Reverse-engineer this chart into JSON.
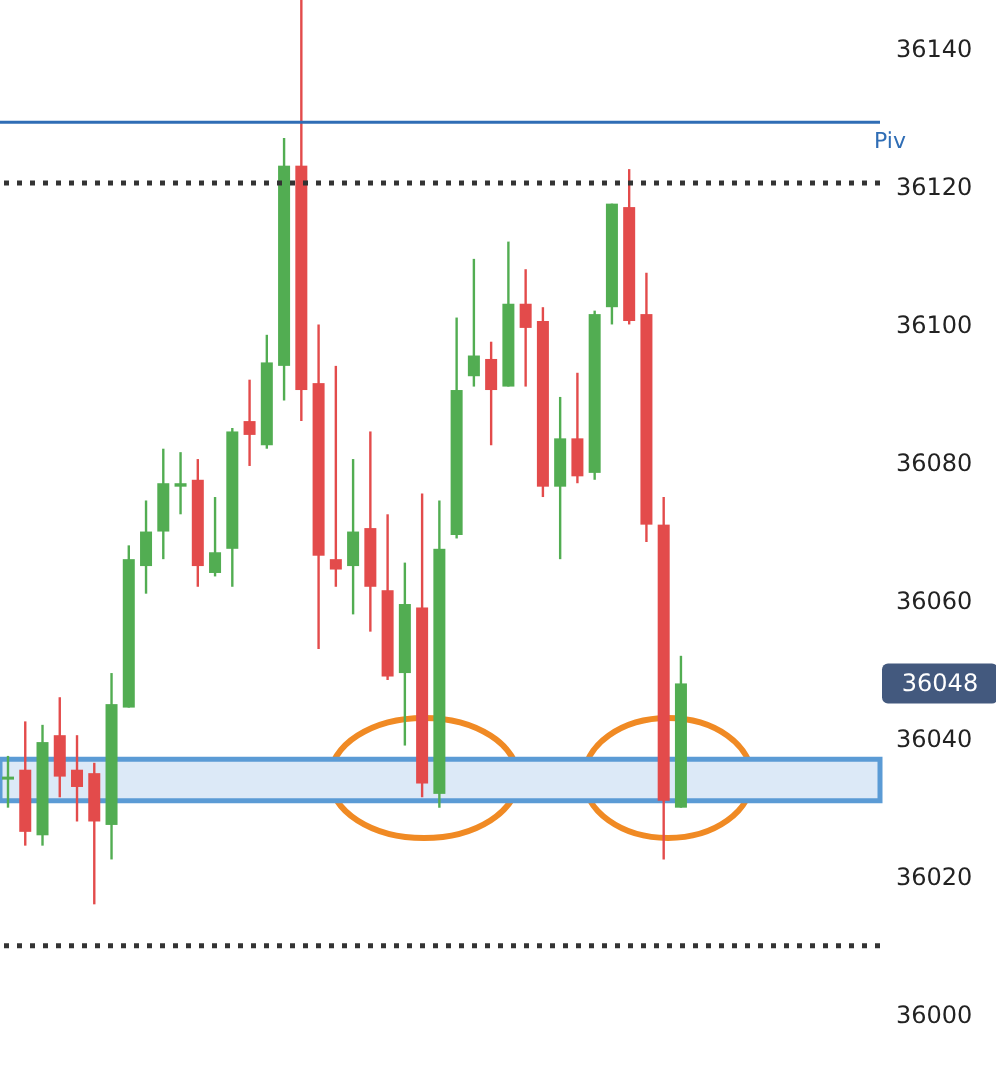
{
  "chart_data": {
    "type": "candlestick",
    "categories": [
      null,
      null,
      null,
      null,
      null,
      null,
      null,
      null,
      null,
      null,
      null,
      null,
      null,
      null,
      null,
      null,
      null,
      null,
      null,
      null,
      null,
      null,
      null,
      null,
      null,
      null,
      null,
      null,
      null,
      null,
      null,
      null,
      null,
      null,
      null,
      null,
      null,
      null,
      null,
      null,
      null,
      null,
      null,
      null,
      null,
      null,
      null,
      null,
      null,
      null,
      null
    ],
    "ohlc": [
      [
        36034.5,
        36037.5,
        36030,
        36034.5
      ],
      [
        36035.5,
        36042.5,
        36024.5,
        36026.5
      ],
      [
        36026,
        36042,
        36024.5,
        36039.5
      ],
      [
        36040.5,
        36046,
        36031.5,
        36034.5
      ],
      [
        36035.5,
        36040.5,
        36028,
        36033
      ],
      [
        36035,
        36036.5,
        36016,
        36028
      ],
      [
        36027.5,
        36049.5,
        36022.5,
        36045
      ],
      [
        36044.5,
        36068,
        36044.5,
        36066
      ],
      [
        36065,
        36074.5,
        36061,
        36070
      ],
      [
        36070,
        36082,
        36066,
        36077
      ],
      [
        36076.5,
        36081.5,
        36072.5,
        36077
      ],
      [
        36077.5,
        36080.5,
        36062,
        36065
      ],
      [
        36064,
        36075,
        36063.5,
        36067
      ],
      [
        36067.5,
        36085,
        36062,
        36084.5
      ],
      [
        36086,
        36092,
        36079.5,
        36084
      ],
      [
        36082.5,
        36098.5,
        36082,
        36094.5
      ],
      [
        36094,
        36127,
        36089,
        36123
      ],
      [
        36123,
        36147,
        36086,
        36090.5
      ],
      [
        36091.5,
        36100,
        36053,
        36066.5
      ],
      [
        36066,
        36094,
        36062,
        36064.5
      ],
      [
        36065,
        36080.5,
        36058,
        36070
      ],
      [
        36070.5,
        36084.5,
        36055.5,
        36062
      ],
      [
        36061.5,
        36072.5,
        36048.5,
        36049
      ],
      [
        36049.5,
        36065.5,
        36039,
        36059.5
      ],
      [
        36059,
        36075.5,
        36031.5,
        36033.5
      ],
      [
        36032,
        36074.5,
        36030,
        36067.5
      ],
      [
        36069.5,
        36101,
        36069,
        36090.5
      ],
      [
        36092.5,
        36109.5,
        36091,
        36095.5
      ],
      [
        36095,
        36097.5,
        36082.5,
        36090.5
      ],
      [
        36091,
        36112,
        36091,
        36103
      ],
      [
        36103,
        36108,
        36091,
        36099.5
      ],
      [
        36100.5,
        36102.5,
        36075,
        36076.5
      ],
      [
        36076.5,
        36089.5,
        36066,
        36083.5
      ],
      [
        36083.5,
        36093,
        36077,
        36078
      ],
      [
        36078.5,
        36102,
        36077.5,
        36101.5
      ],
      [
        36102.5,
        36117.5,
        36100,
        36117.5
      ],
      [
        36117,
        36122.5,
        36100,
        36100.5
      ],
      [
        36101.5,
        36107.5,
        36068.5,
        36071
      ],
      [
        36071,
        36075,
        36022.5,
        36031
      ],
      [
        36030,
        36052,
        36030,
        36048
      ],
      null,
      null,
      null,
      null,
      null,
      null,
      null,
      null,
      null,
      null,
      null
    ],
    "colors": [
      "#52ad52",
      "#e34b4b",
      "#52ad52",
      "#e34b4b",
      "#e34b4b",
      "#e34b4b",
      "#52ad52",
      "#52ad52",
      "#52ad52",
      "#52ad52",
      "#52ad52",
      "#e34b4b",
      "#52ad52",
      "#52ad52",
      "#e34b4b",
      "#52ad52",
      "#52ad52",
      "#e34b4b",
      "#e34b4b",
      "#e34b4b",
      "#52ad52",
      "#e34b4b",
      "#e34b4b",
      "#52ad52",
      "#e34b4b",
      "#52ad52",
      "#52ad52",
      "#52ad52",
      "#e34b4b",
      "#52ad52",
      "#e34b4b",
      "#e34b4b",
      "#52ad52",
      "#e34b4b",
      "#52ad52",
      "#52ad52",
      "#e34b4b",
      "#e34b4b",
      "#e34b4b",
      "#52ad52",
      null,
      null,
      null,
      null,
      null,
      null,
      null,
      null,
      null,
      null,
      null
    ],
    "ylim": [
      35992,
      36147
    ],
    "yticks": [
      36000,
      36020,
      36040,
      36060,
      36080,
      36100,
      36120,
      36140
    ],
    "tick_labels": "y",
    "ref_lines": [
      {
        "axis": "y",
        "value": 36129.3,
        "label": "Piv",
        "color": "#2f6db5",
        "line_style": "solid"
      },
      {
        "axis": "y",
        "value": 36120.5,
        "color": "#333333",
        "line_style": "dotted"
      },
      {
        "axis": "y",
        "value": 36010,
        "color": "#333333",
        "line_style": "dotted"
      }
    ],
    "bands": [
      {
        "axis": "y",
        "from": 36031,
        "to": 36037,
        "color": "#dce9f7"
      }
    ],
    "annotations": [
      "36048"
    ]
  }
}
